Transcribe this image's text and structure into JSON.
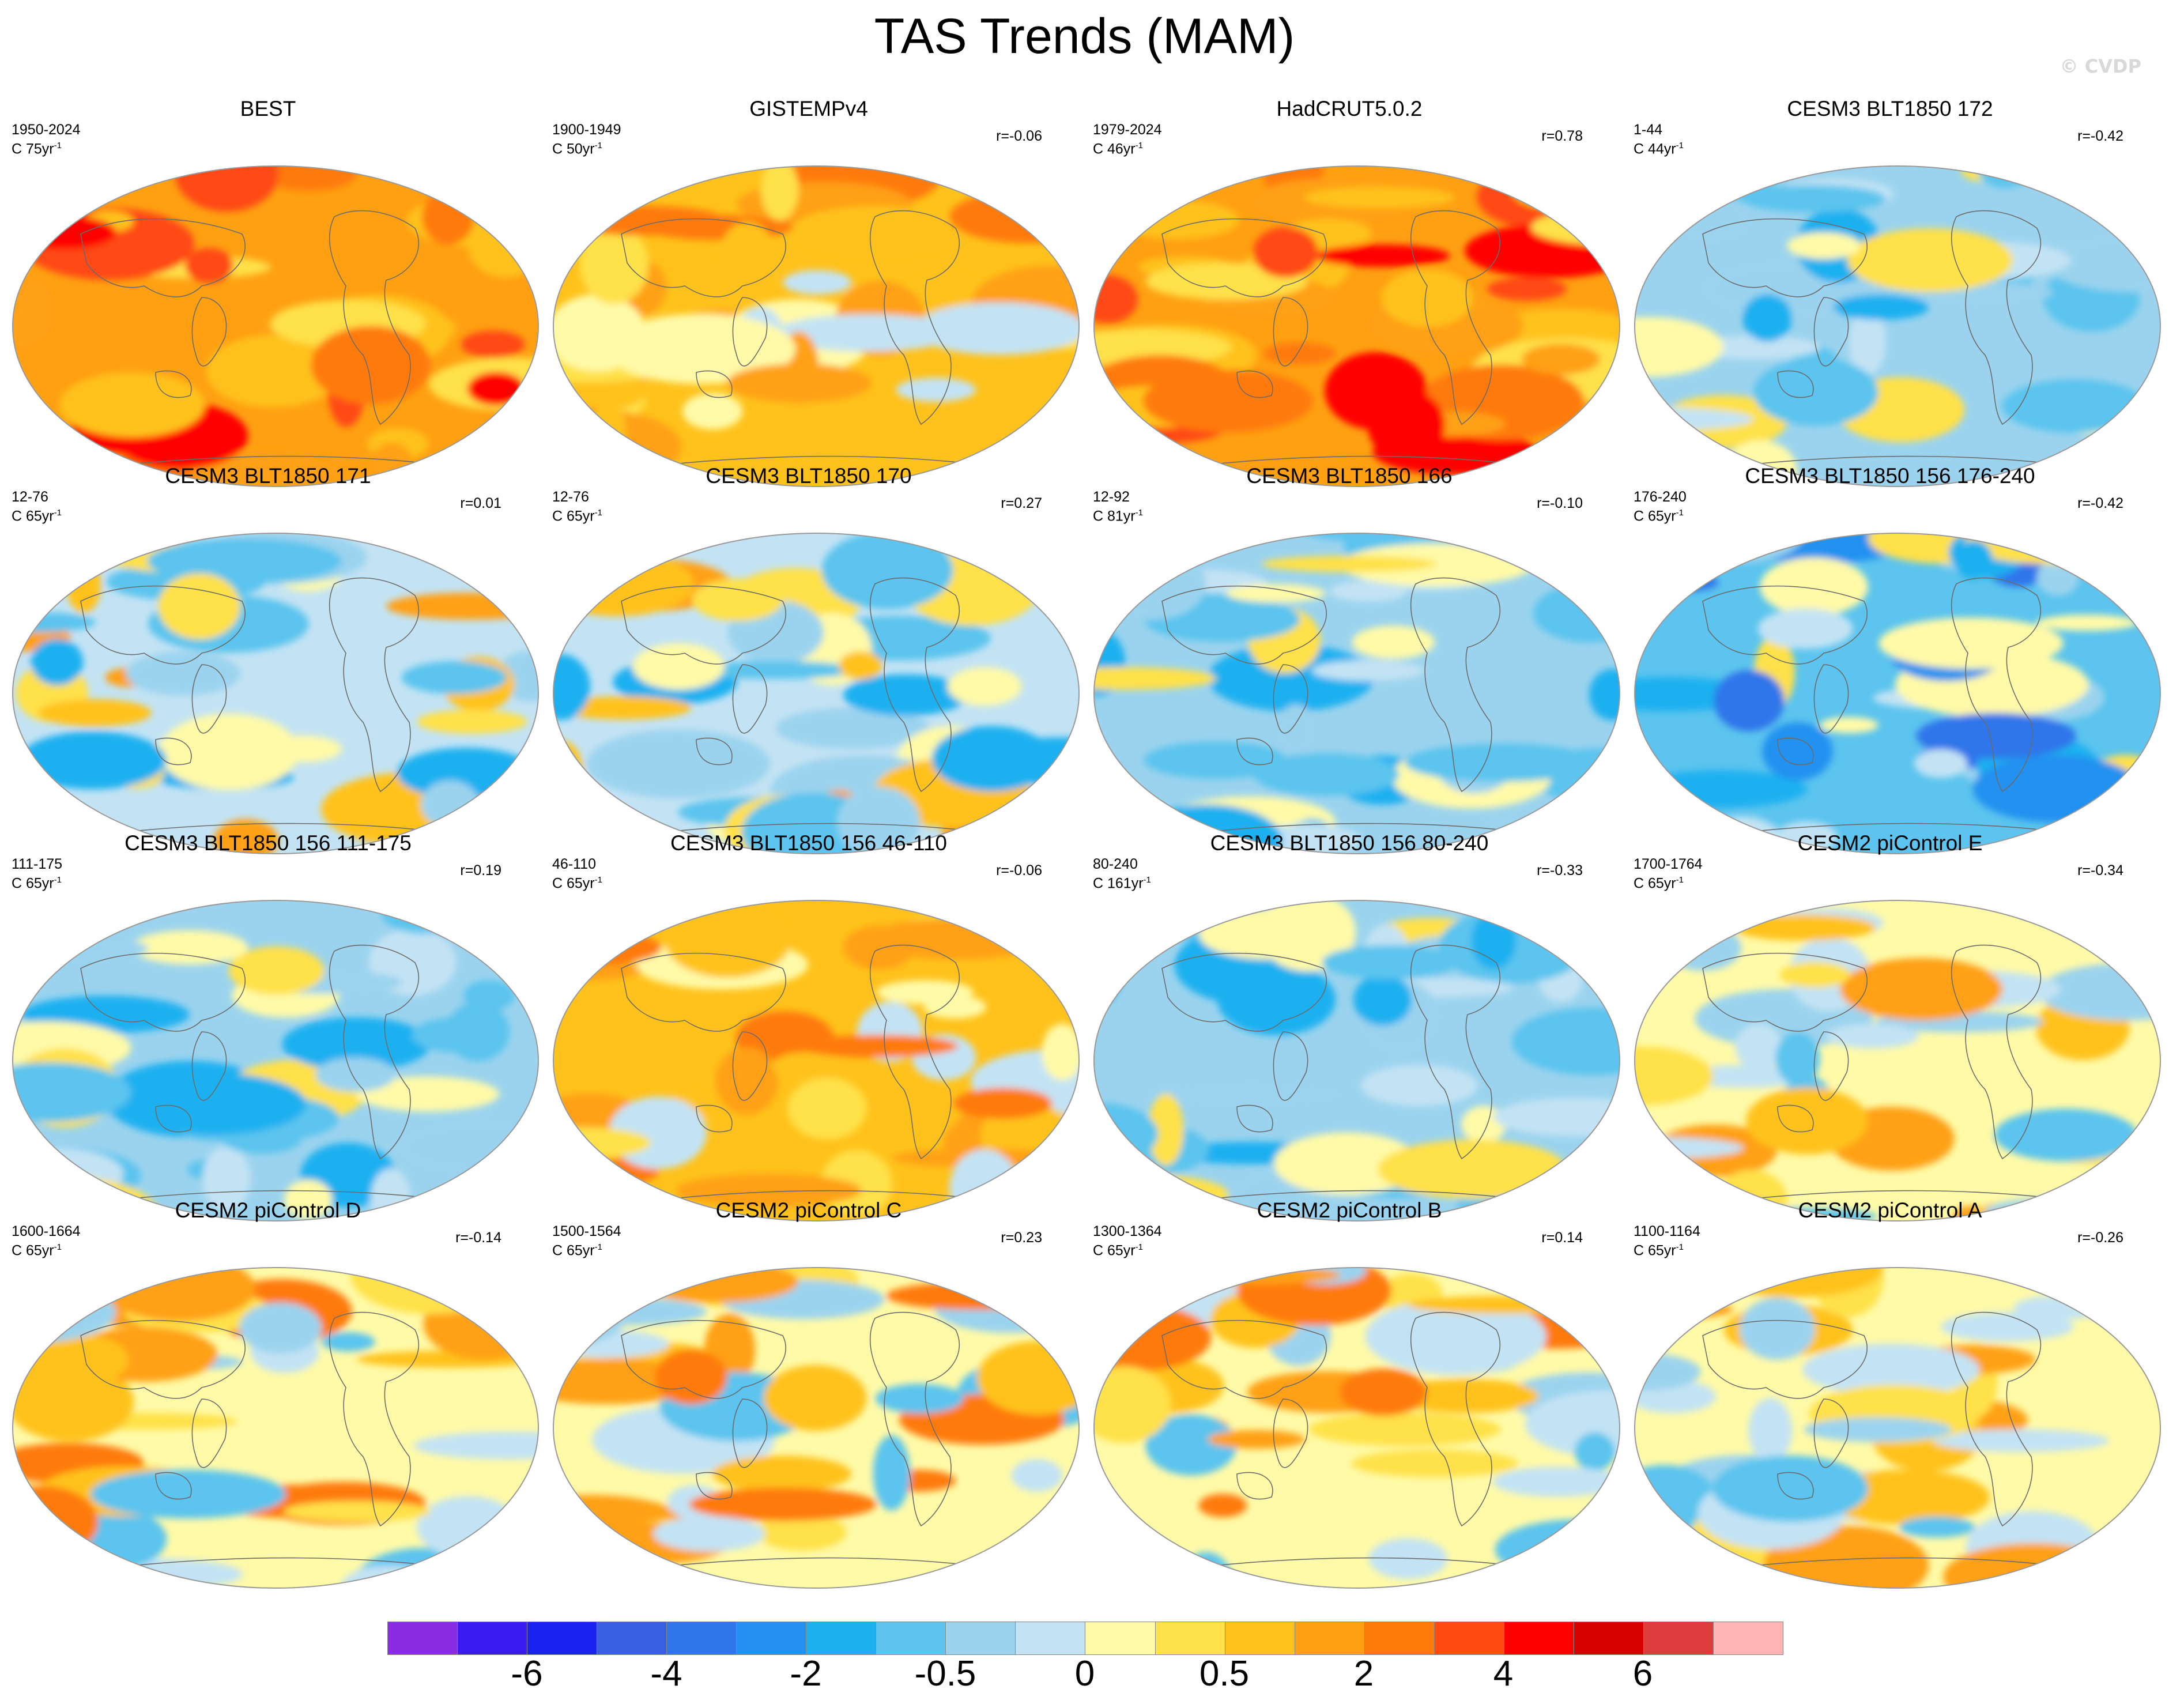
{
  "title": "TAS Trends (MAM)",
  "watermark": "© CVDP",
  "chart_data": {
    "type": "heatmap",
    "projection": "Robinson (global maps)",
    "variable": "TAS (surface air temperature) trend, March-May",
    "panels": [
      {
        "title": "BEST",
        "period": "1950-2024",
        "length": "C 75yr",
        "exponent": "-1",
        "corr": "",
        "pattern": "warm-strong"
      },
      {
        "title": "GISTEMPv4",
        "period": "1900-1949",
        "length": "C 50yr",
        "exponent": "-1",
        "corr": "r=-0.06",
        "pattern": "warm-moderate"
      },
      {
        "title": "HadCRUT5.0.2",
        "period": "1979-2024",
        "length": "C 46yr",
        "exponent": "-1",
        "corr": "r=0.78",
        "pattern": "warm-strong"
      },
      {
        "title": "CESM3 BLT1850 172",
        "period": "1-44",
        "length": "C 44yr",
        "exponent": "-1",
        "corr": "r=-0.42",
        "pattern": "cool"
      },
      {
        "title": "CESM3 BLT1850 171",
        "period": "12-76",
        "length": "C 65yr",
        "exponent": "-1",
        "corr": "r=0.01",
        "pattern": "mixed-cool"
      },
      {
        "title": "CESM3 BLT1850 170",
        "period": "12-76",
        "length": "C 65yr",
        "exponent": "-1",
        "corr": "r=0.27",
        "pattern": "mixed-cool"
      },
      {
        "title": "CESM3 BLT1850 166",
        "period": "12-92",
        "length": "C 81yr",
        "exponent": "-1",
        "corr": "r=-0.10",
        "pattern": "cool"
      },
      {
        "title": "CESM3 BLT1850 156 176-240",
        "period": "176-240",
        "length": "C 65yr",
        "exponent": "-1",
        "corr": "r=-0.42",
        "pattern": "cool-strong"
      },
      {
        "title": "CESM3 BLT1850 156 111-175",
        "period": "111-175",
        "length": "C 65yr",
        "exponent": "-1",
        "corr": "r=0.19",
        "pattern": "cool"
      },
      {
        "title": "CESM3 BLT1850 156 46-110",
        "period": "46-110",
        "length": "C 65yr",
        "exponent": "-1",
        "corr": "r=-0.06",
        "pattern": "warm-moderate"
      },
      {
        "title": "CESM3 BLT1850 156 80-240",
        "period": "80-240",
        "length": "C 161yr",
        "exponent": "-1",
        "corr": "r=-0.33",
        "pattern": "cool"
      },
      {
        "title": "CESM2 piControl E",
        "period": "1700-1764",
        "length": "C 65yr",
        "exponent": "-1",
        "corr": "r=-0.34",
        "pattern": "mixed"
      },
      {
        "title": "CESM2 piControl D",
        "period": "1600-1664",
        "length": "C 65yr",
        "exponent": "-1",
        "corr": "r=-0.14",
        "pattern": "mixed-warm"
      },
      {
        "title": "CESM2 piControl C",
        "period": "1500-1564",
        "length": "C 65yr",
        "exponent": "-1",
        "corr": "r=0.23",
        "pattern": "mixed-warm"
      },
      {
        "title": "CESM2 piControl B",
        "period": "1300-1364",
        "length": "C 65yr",
        "exponent": "-1",
        "corr": "r=0.14",
        "pattern": "mixed-warm"
      },
      {
        "title": "CESM2 piControl A",
        "period": "1100-1164",
        "length": "C 65yr",
        "exponent": "-1",
        "corr": "r=-0.26",
        "pattern": "mixed"
      }
    ],
    "colorbar": {
      "colors": [
        "#8b2be2",
        "#3a1cf0",
        "#1a22f0",
        "#3a5ee0",
        "#2f76ea",
        "#2491f0",
        "#1fb0f0",
        "#5cc4ee",
        "#9bd3ee",
        "#c3e3f4",
        "#fffaa8",
        "#ffe14a",
        "#ffc21c",
        "#ffa012",
        "#ff7a0a",
        "#ff4a12",
        "#ff0000",
        "#d60000",
        "#dc3c3c",
        "#ffb4b4"
      ],
      "tick_labels": [
        "-6",
        "-4",
        "-2",
        "-0.5",
        "0",
        "0.5",
        "2",
        "4",
        "6"
      ],
      "tick_positions_bins": [
        2,
        4,
        6,
        8,
        10,
        12,
        14,
        16,
        18
      ],
      "n_bins": 20
    }
  }
}
